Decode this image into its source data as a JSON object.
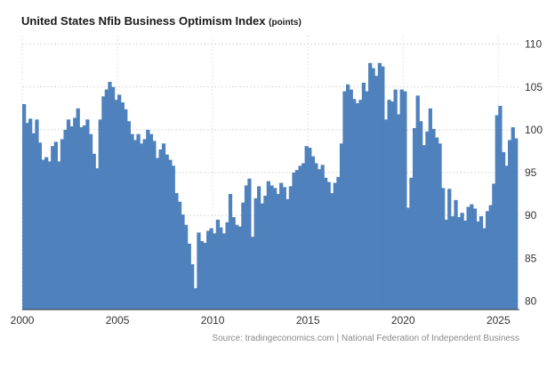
{
  "chart_data": {
    "type": "bar",
    "title": "United States Nfib Business Optimism Index",
    "units": "(points)",
    "xlabel": "",
    "ylabel": "",
    "x_ticks": [
      "2000",
      "2005",
      "2010",
      "2015",
      "2020",
      "2025"
    ],
    "y_ticks": [
      "80",
      "85",
      "90",
      "95",
      "100",
      "105",
      "110"
    ],
    "ylim": [
      79,
      111
    ],
    "x_range": [
      2000.0,
      2025.92
    ],
    "grid": true,
    "legend": "none",
    "bar_color": "#4f81bd",
    "series": [
      {
        "points": [
          [
            2000.0,
            103.0
          ],
          [
            2000.17,
            100.8
          ],
          [
            2000.33,
            101.3
          ],
          [
            2000.5,
            99.6
          ],
          [
            2000.67,
            101.2
          ],
          [
            2000.83,
            98.5
          ],
          [
            2001.0,
            96.5
          ],
          [
            2001.17,
            96.8
          ],
          [
            2001.33,
            96.3
          ],
          [
            2001.5,
            98.1
          ],
          [
            2001.67,
            98.6
          ],
          [
            2001.83,
            96.3
          ],
          [
            2002.0,
            98.9
          ],
          [
            2002.17,
            100.0
          ],
          [
            2002.33,
            101.2
          ],
          [
            2002.5,
            100.4
          ],
          [
            2002.67,
            101.4
          ],
          [
            2002.83,
            102.5
          ],
          [
            2003.0,
            100.3
          ],
          [
            2003.17,
            100.5
          ],
          [
            2003.33,
            101.2
          ],
          [
            2003.5,
            99.5
          ],
          [
            2003.67,
            97.2
          ],
          [
            2003.83,
            95.5
          ],
          [
            2004.0,
            101.2
          ],
          [
            2004.17,
            103.9
          ],
          [
            2004.33,
            104.7
          ],
          [
            2004.5,
            105.6
          ],
          [
            2004.67,
            105.0
          ],
          [
            2004.83,
            103.5
          ],
          [
            2005.0,
            104.1
          ],
          [
            2005.17,
            103.2
          ],
          [
            2005.33,
            102.4
          ],
          [
            2005.5,
            101.0
          ],
          [
            2005.67,
            99.5
          ],
          [
            2005.83,
            98.8
          ],
          [
            2006.0,
            99.5
          ],
          [
            2006.17,
            98.4
          ],
          [
            2006.33,
            98.9
          ],
          [
            2006.5,
            100.0
          ],
          [
            2006.67,
            99.5
          ],
          [
            2006.83,
            98.7
          ],
          [
            2007.0,
            96.7
          ],
          [
            2007.17,
            97.7
          ],
          [
            2007.33,
            98.4
          ],
          [
            2007.5,
            97.1
          ],
          [
            2007.67,
            96.5
          ],
          [
            2007.83,
            95.8
          ],
          [
            2008.0,
            92.6
          ],
          [
            2008.17,
            91.6
          ],
          [
            2008.33,
            90.1
          ],
          [
            2008.5,
            88.9
          ],
          [
            2008.67,
            86.7
          ],
          [
            2008.83,
            84.3
          ],
          [
            2009.0,
            81.5
          ],
          [
            2009.17,
            88.0
          ],
          [
            2009.33,
            87.0
          ],
          [
            2009.5,
            86.8
          ],
          [
            2009.67,
            88.2
          ],
          [
            2009.83,
            88.5
          ],
          [
            2010.0,
            87.9
          ],
          [
            2010.17,
            89.5
          ],
          [
            2010.33,
            88.6
          ],
          [
            2010.5,
            87.9
          ],
          [
            2010.67,
            89.2
          ],
          [
            2010.83,
            92.5
          ],
          [
            2011.0,
            89.8
          ],
          [
            2011.17,
            88.9
          ],
          [
            2011.33,
            88.7
          ],
          [
            2011.5,
            91.5
          ],
          [
            2011.67,
            93.5
          ],
          [
            2011.83,
            94.3
          ],
          [
            2012.0,
            87.5
          ],
          [
            2012.17,
            92.0
          ],
          [
            2012.33,
            93.4
          ],
          [
            2012.5,
            91.4
          ],
          [
            2012.67,
            92.3
          ],
          [
            2012.83,
            94.0
          ],
          [
            2013.0,
            93.5
          ],
          [
            2013.17,
            93.2
          ],
          [
            2013.33,
            92.5
          ],
          [
            2013.5,
            93.8
          ],
          [
            2013.67,
            93.3
          ],
          [
            2013.83,
            91.9
          ],
          [
            2014.0,
            93.4
          ],
          [
            2014.17,
            95.0
          ],
          [
            2014.33,
            95.3
          ],
          [
            2014.5,
            95.8
          ],
          [
            2014.67,
            96.1
          ],
          [
            2014.83,
            98.1
          ],
          [
            2015.0,
            97.9
          ],
          [
            2015.17,
            96.9
          ],
          [
            2015.33,
            96.1
          ],
          [
            2015.5,
            95.4
          ],
          [
            2015.67,
            95.9
          ],
          [
            2015.83,
            94.4
          ],
          [
            2016.0,
            93.9
          ],
          [
            2016.17,
            92.6
          ],
          [
            2016.33,
            93.8
          ],
          [
            2016.5,
            94.5
          ],
          [
            2016.67,
            98.4
          ],
          [
            2016.83,
            104.5
          ],
          [
            2017.0,
            105.3
          ],
          [
            2017.17,
            104.7
          ],
          [
            2017.33,
            103.6
          ],
          [
            2017.5,
            103.1
          ],
          [
            2017.67,
            103.5
          ],
          [
            2017.83,
            105.5
          ],
          [
            2018.0,
            104.5
          ],
          [
            2018.17,
            107.8
          ],
          [
            2018.33,
            107.2
          ],
          [
            2018.5,
            106.3
          ],
          [
            2018.67,
            107.8
          ],
          [
            2018.83,
            107.4
          ],
          [
            2019.0,
            101.2
          ],
          [
            2019.17,
            103.5
          ],
          [
            2019.33,
            103.3
          ],
          [
            2019.5,
            104.7
          ],
          [
            2019.67,
            101.8
          ],
          [
            2019.83,
            104.7
          ],
          [
            2020.0,
            104.5
          ],
          [
            2020.17,
            90.9
          ],
          [
            2020.33,
            94.4
          ],
          [
            2020.5,
            100.2
          ],
          [
            2020.67,
            104.0
          ],
          [
            2020.83,
            101.0
          ],
          [
            2021.0,
            98.2
          ],
          [
            2021.17,
            99.8
          ],
          [
            2021.33,
            102.5
          ],
          [
            2021.5,
            100.1
          ],
          [
            2021.67,
            99.1
          ],
          [
            2021.83,
            98.4
          ],
          [
            2022.0,
            93.2
          ],
          [
            2022.17,
            89.5
          ],
          [
            2022.33,
            93.1
          ],
          [
            2022.5,
            89.9
          ],
          [
            2022.67,
            91.8
          ],
          [
            2022.83,
            89.8
          ],
          [
            2023.0,
            90.3
          ],
          [
            2023.17,
            89.4
          ],
          [
            2023.33,
            91.0
          ],
          [
            2023.5,
            91.3
          ],
          [
            2023.67,
            90.8
          ],
          [
            2023.83,
            89.3
          ],
          [
            2024.0,
            89.9
          ],
          [
            2024.17,
            88.5
          ],
          [
            2024.33,
            90.5
          ],
          [
            2024.5,
            91.2
          ],
          [
            2024.67,
            93.7
          ],
          [
            2024.83,
            101.7
          ],
          [
            2025.0,
            102.8
          ],
          [
            2025.17,
            97.4
          ],
          [
            2025.33,
            95.8
          ],
          [
            2025.5,
            98.8
          ],
          [
            2025.67,
            100.3
          ],
          [
            2025.83,
            99.0
          ]
        ]
      }
    ]
  },
  "title_text": "United States Nfib Business Optimism Index",
  "title_units": "(points)",
  "source_text": "Source: tradingeconomics.com | National Federation of Independent Business"
}
